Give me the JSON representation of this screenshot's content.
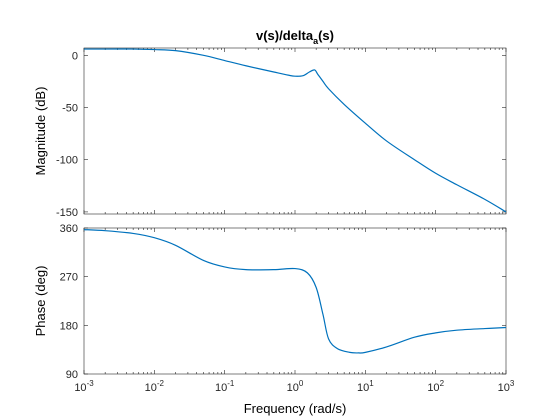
{
  "chart_data": [
    {
      "type": "line",
      "title_main": "v(s)/delta",
      "title_sub": "a",
      "title_end": "(s)",
      "ylabel": "Magnitude (dB)",
      "xscale": "log",
      "xlim": [
        0.001,
        1000
      ],
      "ylim": [
        -152,
        7
      ],
      "yticks": [
        0,
        -50,
        -100,
        -150
      ],
      "ytick_labels": [
        "0",
        "-50",
        "-100",
        "-150"
      ],
      "series": [
        {
          "color": "#0072bd",
          "x": [
            0.001,
            0.002,
            0.005,
            0.01,
            0.02,
            0.05,
            0.1,
            0.2,
            0.5,
            0.8,
            1.0,
            1.3,
            1.6,
            1.9,
            2.1,
            2.5,
            3,
            5,
            10,
            20,
            50,
            100,
            200,
            500,
            1000
          ],
          "y": [
            6,
            6,
            6,
            5.5,
            4.5,
            0,
            -5,
            -10,
            -16,
            -19,
            -20,
            -19.5,
            -16,
            -14,
            -18,
            -25,
            -32,
            -47,
            -65,
            -82,
            -100,
            -113,
            -124,
            -138,
            -150
          ]
        }
      ]
    },
    {
      "type": "line",
      "xlabel": "Frequency  (rad/s)",
      "ylabel": "Phase (deg)",
      "xscale": "log",
      "xlim": [
        0.001,
        1000
      ],
      "ylim": [
        90,
        360
      ],
      "yticks": [
        360,
        270,
        180,
        90
      ],
      "ytick_labels": [
        "360",
        "270",
        "180",
        "90"
      ],
      "xticks": [
        0.001,
        0.01,
        0.1,
        1,
        10,
        100,
        1000
      ],
      "xtick_base": [
        "10",
        "10",
        "10",
        "10",
        "10",
        "10",
        "10"
      ],
      "xtick_exp": [
        "-3",
        "-2",
        "-1",
        "0",
        "1",
        "2",
        "3"
      ],
      "series": [
        {
          "color": "#0072bd",
          "x": [
            0.001,
            0.002,
            0.005,
            0.01,
            0.02,
            0.05,
            0.1,
            0.2,
            0.5,
            1.0,
            1.5,
            2,
            2.5,
            3,
            4,
            6,
            8,
            10,
            20,
            50,
            100,
            200,
            500,
            1000
          ],
          "y": [
            357,
            355,
            350,
            342,
            328,
            300,
            288,
            283,
            283,
            285,
            277,
            250,
            200,
            155,
            137,
            130,
            129,
            130,
            140,
            158,
            166,
            171,
            174,
            176
          ]
        }
      ]
    }
  ]
}
